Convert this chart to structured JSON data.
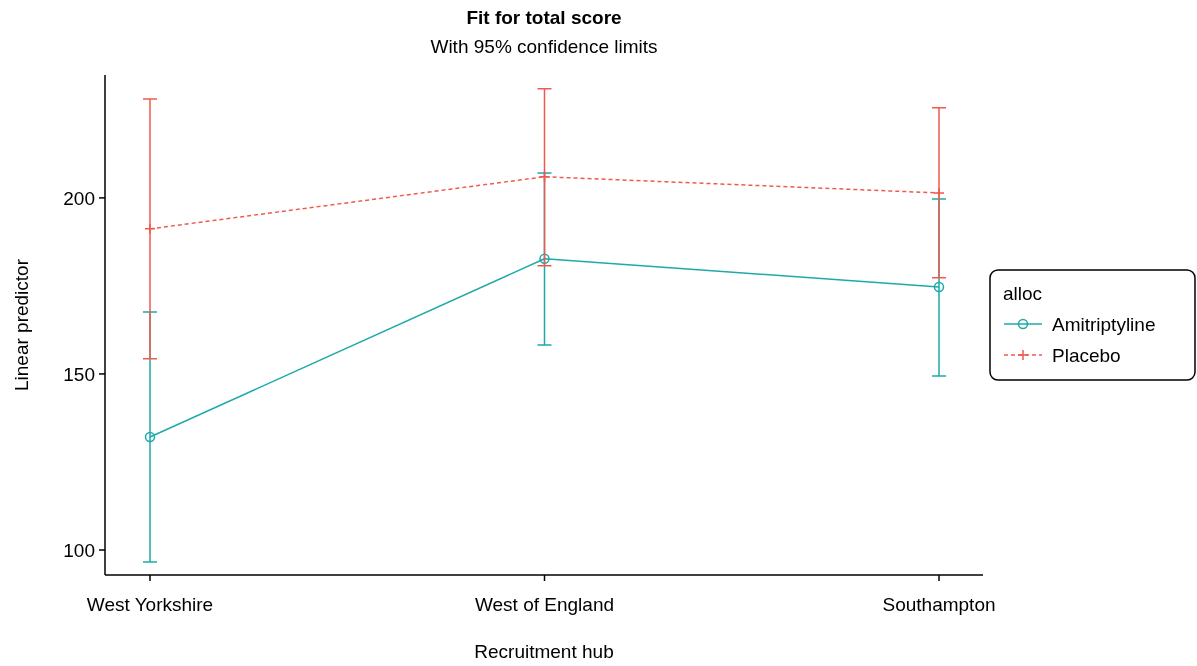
{
  "chart_data": {
    "type": "line",
    "title": "Fit for total score",
    "subtitle": "With 95% confidence limits",
    "xlabel": "Recruitment hub",
    "ylabel": "Linear predictor",
    "legend_title": "alloc",
    "legend": "right",
    "categories": [
      "West Yorkshire",
      "West of England",
      "Southampton"
    ],
    "ylim": [
      92.9,
      234.9
    ],
    "yticks": [
      100,
      150,
      200
    ],
    "series": [
      {
        "name": "Amitriptyline",
        "color": "#1fa9a9",
        "marker": "circle",
        "line_style": "solid",
        "values": [
          132.1,
          182.7,
          174.7
        ],
        "errors": [
          [
            96.6,
            167.6
          ],
          [
            158.2,
            207.1
          ],
          [
            149.4,
            199.7
          ]
        ]
      },
      {
        "name": "Placebo",
        "color": "#ef5a4c",
        "marker": "cross",
        "line_style": "dashed",
        "values": [
          191.2,
          206.0,
          201.4
        ],
        "errors": [
          [
            154.3,
            228.1
          ],
          [
            180.7,
            231.0
          ],
          [
            177.3,
            225.6
          ]
        ]
      }
    ]
  }
}
